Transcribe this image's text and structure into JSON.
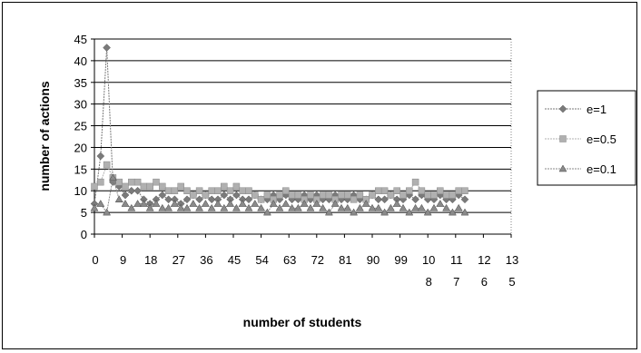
{
  "chart_data": {
    "type": "line",
    "title": "",
    "xlabel": "number of students",
    "ylabel": "number of actions",
    "ylim": [
      0,
      45
    ],
    "yticks": [
      "0",
      "5",
      "10",
      "15",
      "20",
      "25",
      "30",
      "35",
      "40",
      "45"
    ],
    "xticks": [
      [
        "0"
      ],
      [
        "9"
      ],
      [
        "18"
      ],
      [
        "27"
      ],
      [
        "36"
      ],
      [
        "45"
      ],
      [
        "54"
      ],
      [
        "63"
      ],
      [
        "72"
      ],
      [
        "81"
      ],
      [
        "90"
      ],
      [
        "99"
      ],
      [
        "10",
        "8"
      ],
      [
        "11",
        "7"
      ],
      [
        "12",
        "6"
      ],
      [
        "13",
        "5"
      ]
    ],
    "xlim": [
      0,
      135
    ],
    "grid": "horizontal",
    "legend_position": "right",
    "series": [
      {
        "name": "e=1",
        "color": "#7a7a7a",
        "marker": "diamond",
        "x": [
          0,
          2,
          4,
          6,
          8,
          10,
          12,
          14,
          16,
          18,
          20,
          22,
          24,
          26,
          28,
          30,
          32,
          34,
          36,
          38,
          40,
          42,
          44,
          46,
          48,
          50,
          52,
          54,
          56,
          58,
          60,
          62,
          64,
          66,
          68,
          70,
          72,
          74,
          76,
          78,
          80,
          82,
          84,
          86,
          88,
          90,
          92,
          94,
          96,
          98,
          100,
          102,
          104,
          106,
          108,
          110,
          112,
          114,
          116,
          118,
          120
        ],
        "values": [
          7,
          18,
          43,
          12,
          11,
          9,
          10,
          10,
          8,
          7,
          8,
          9,
          8,
          8,
          7,
          8,
          9,
          8,
          9,
          8,
          8,
          9,
          8,
          9,
          8,
          8,
          9,
          8,
          8,
          9,
          8,
          9,
          8,
          8,
          9,
          8,
          9,
          8,
          8,
          9,
          8,
          8,
          9,
          8,
          8,
          9,
          8,
          8,
          9,
          8,
          8,
          9,
          8,
          9,
          8,
          8,
          9,
          8,
          8,
          9,
          8
        ]
      },
      {
        "name": "e=0.5",
        "color": "#b0b0b0",
        "marker": "square",
        "x": [
          0,
          2,
          4,
          6,
          8,
          10,
          12,
          14,
          16,
          18,
          20,
          22,
          24,
          26,
          28,
          30,
          32,
          34,
          36,
          38,
          40,
          42,
          44,
          46,
          48,
          50,
          52,
          54,
          56,
          58,
          60,
          62,
          64,
          66,
          68,
          70,
          72,
          74,
          76,
          78,
          80,
          82,
          84,
          86,
          88,
          90,
          92,
          94,
          96,
          98,
          100,
          102,
          104,
          106,
          108,
          110,
          112,
          114,
          116,
          118,
          120
        ],
        "values": [
          11,
          12,
          16,
          13,
          12,
          11,
          12,
          12,
          11,
          11,
          12,
          11,
          10,
          10,
          11,
          10,
          9,
          10,
          9,
          10,
          10,
          11,
          10,
          11,
          10,
          10,
          9,
          8,
          9,
          8,
          9,
          10,
          9,
          9,
          8,
          9,
          8,
          9,
          9,
          8,
          9,
          9,
          8,
          9,
          8,
          9,
          10,
          10,
          9,
          10,
          9,
          10,
          12,
          10,
          9,
          9,
          10,
          9,
          9,
          10,
          10
        ]
      },
      {
        "name": "e=0.1",
        "color": "#8a8a8a",
        "marker": "triangle",
        "x": [
          0,
          2,
          4,
          6,
          8,
          10,
          12,
          14,
          16,
          18,
          20,
          22,
          24,
          26,
          28,
          30,
          32,
          34,
          36,
          38,
          40,
          42,
          44,
          46,
          48,
          50,
          52,
          54,
          56,
          58,
          60,
          62,
          64,
          66,
          68,
          70,
          72,
          74,
          76,
          78,
          80,
          82,
          84,
          86,
          88,
          90,
          92,
          94,
          96,
          98,
          100,
          102,
          104,
          106,
          108,
          110,
          112,
          114,
          116,
          118,
          120
        ],
        "values": [
          6,
          7,
          5,
          13,
          8,
          7,
          6,
          7,
          7,
          6,
          7,
          6,
          6,
          7,
          6,
          6,
          7,
          6,
          7,
          6,
          7,
          6,
          7,
          6,
          7,
          6,
          7,
          6,
          5,
          7,
          6,
          7,
          6,
          6,
          7,
          6,
          7,
          6,
          5,
          7,
          6,
          6,
          5,
          6,
          7,
          6,
          6,
          5,
          6,
          7,
          6,
          5,
          6,
          6,
          5,
          6,
          7,
          6,
          5,
          6,
          5
        ]
      }
    ]
  }
}
